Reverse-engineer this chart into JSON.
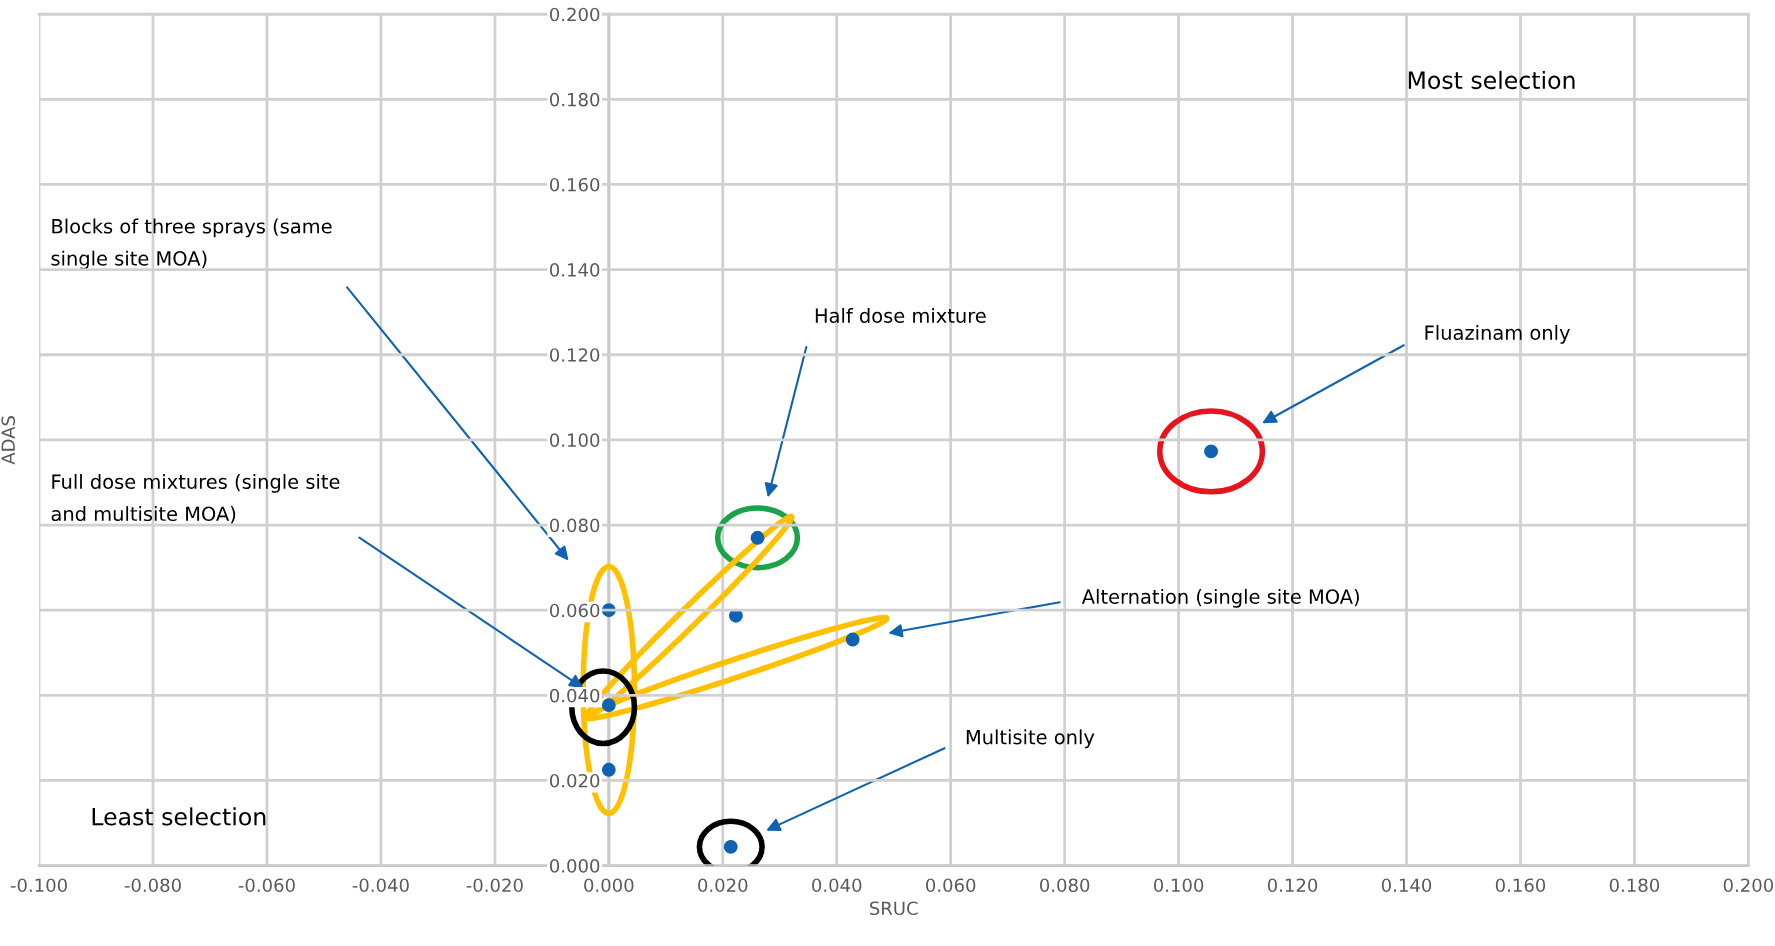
{
  "chart_data": {
    "type": "scatter",
    "xlabel": "SRUC",
    "ylabel": "ADAS",
    "x": [
      0,
      0,
      0,
      0.0223,
      0.0428,
      0.0261,
      0.1057,
      0.0214
    ],
    "series": [
      {
        "color": "#1063b0",
        "values": [
          0.06,
          0.0377,
          0.0225,
          0.0587,
          0.0531,
          0.077,
          0.0973,
          0.0044
        ]
      }
    ],
    "xlim": [
      -0.1,
      0.2
    ],
    "ylim": [
      0,
      0.2
    ],
    "xticks": [
      {
        "value": -0.1,
        "label": "-0.100"
      },
      {
        "value": -0.08,
        "label": "-0.080"
      },
      {
        "value": -0.06,
        "label": "-0.060"
      },
      {
        "value": -0.04,
        "label": "-0.040"
      },
      {
        "value": -0.02,
        "label": "-0.020"
      },
      {
        "value": 0,
        "label": "0.000"
      },
      {
        "value": 0.02,
        "label": "0.020"
      },
      {
        "value": 0.04,
        "label": "0.040"
      },
      {
        "value": 0.06,
        "label": "0.060"
      },
      {
        "value": 0.08,
        "label": "0.080"
      },
      {
        "value": 0.1,
        "label": "0.100"
      },
      {
        "value": 0.12,
        "label": "0.120"
      },
      {
        "value": 0.14,
        "label": "0.140"
      },
      {
        "value": 0.16,
        "label": "0.160"
      },
      {
        "value": 0.18,
        "label": "0.180"
      },
      {
        "value": 0.2,
        "label": "0.200"
      }
    ],
    "yticks": [
      {
        "value": 0,
        "label": "0.000"
      },
      {
        "value": 0.02,
        "label": "0.020"
      },
      {
        "value": 0.04,
        "label": "0.040"
      },
      {
        "value": 0.06,
        "label": "0.060"
      },
      {
        "value": 0.08,
        "label": "0.080"
      },
      {
        "value": 0.1,
        "label": "0.100"
      },
      {
        "value": 0.12,
        "label": "0.120"
      },
      {
        "value": 0.14,
        "label": "0.140"
      },
      {
        "value": 0.16,
        "label": "0.160"
      },
      {
        "value": 0.18,
        "label": "0.180"
      },
      {
        "value": 0.2,
        "label": "0.200"
      }
    ],
    "grid": true,
    "marker": "circle",
    "annotations": [
      "Most selection",
      "Least selection",
      "Blocks of three sprays (same\nsingle site MOA)",
      "Full dose mixtures (single site\nand multisite MOA)",
      "Half dose mixture",
      "Fluazinam only",
      "Alternation (single site MOA)",
      "Multisite only"
    ]
  }
}
